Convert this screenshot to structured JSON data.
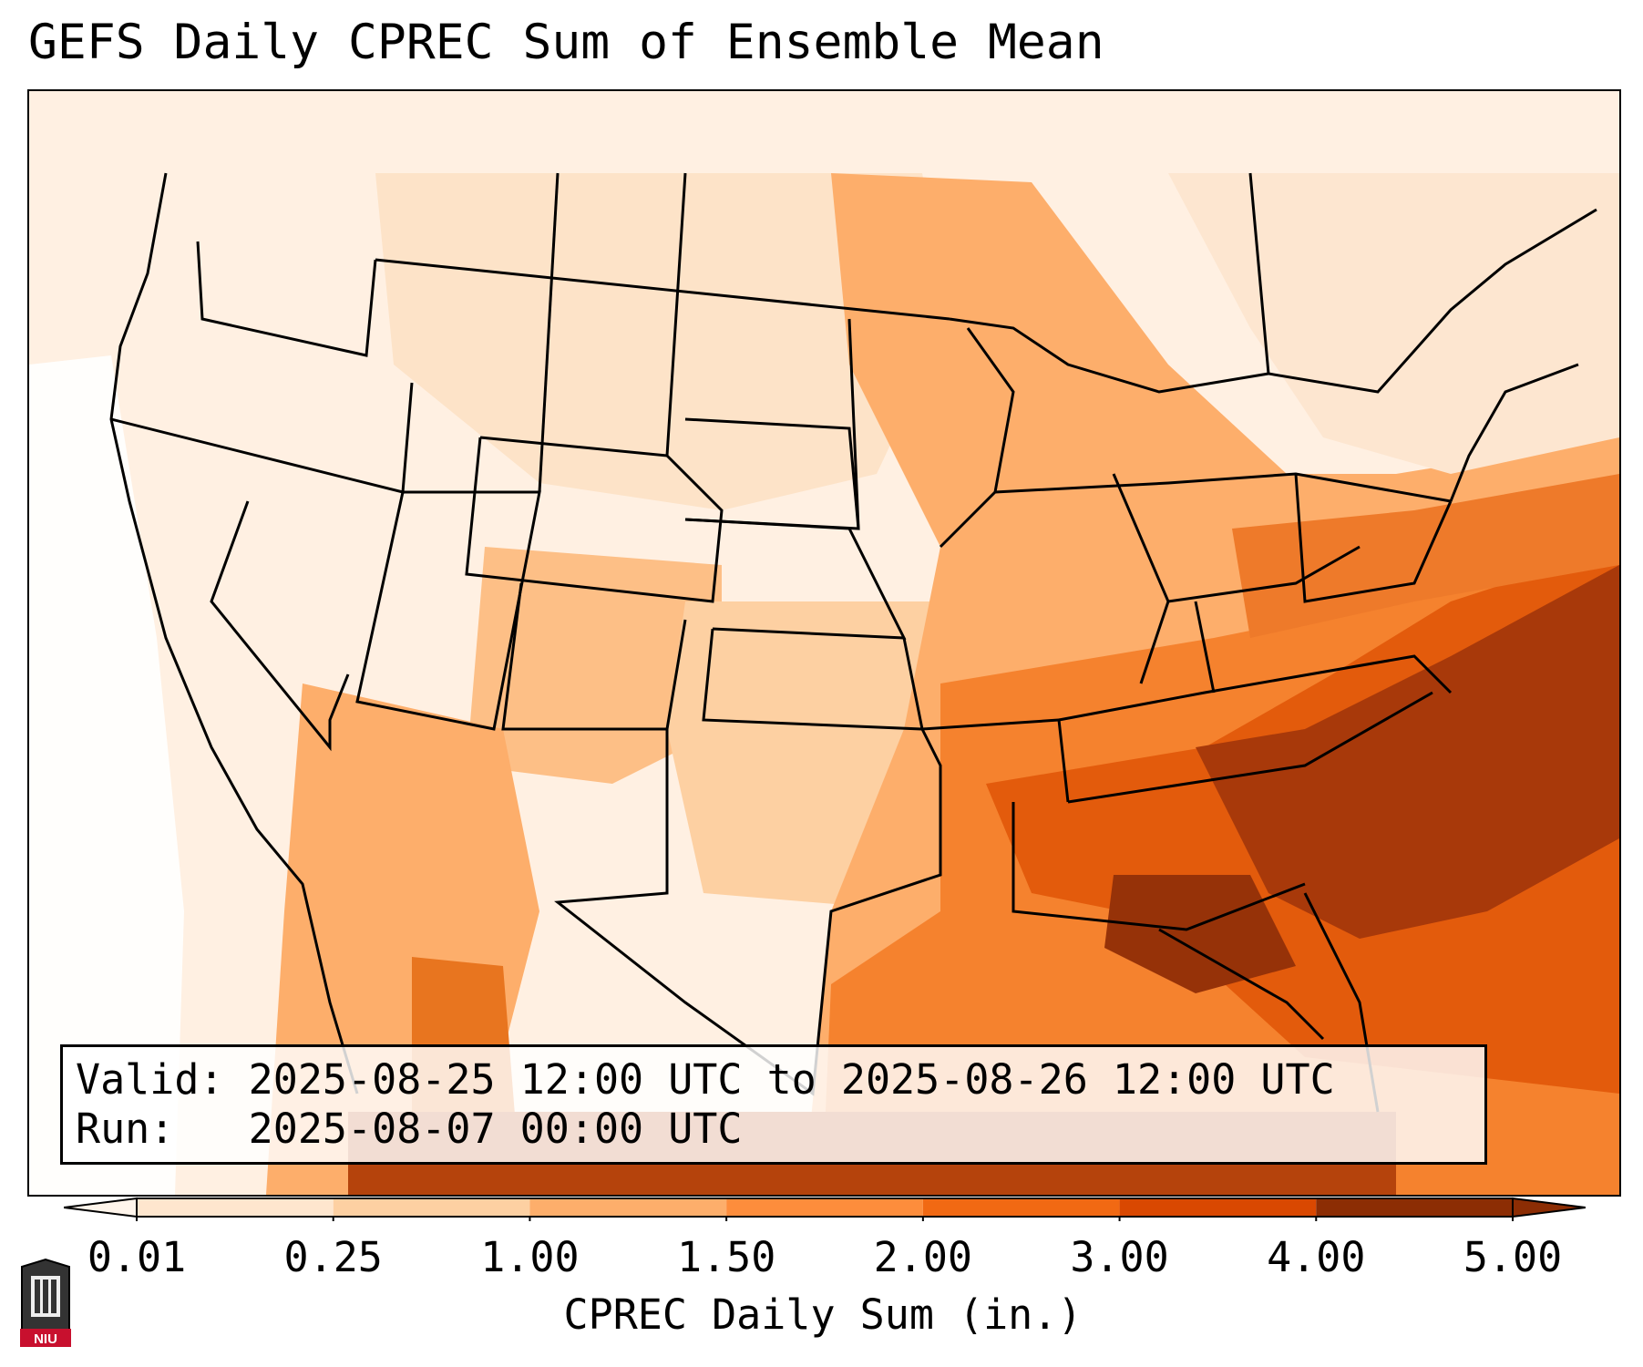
{
  "title": "GEFS Daily CPREC Sum of Ensemble Mean",
  "info": {
    "valid_line": "Valid: 2025-08-25 12:00 UTC to 2025-08-26 12:00 UTC",
    "run_line": "Run:   2025-08-07 00:00 UTC"
  },
  "colorbar": {
    "label": "CPREC Daily Sum (in.)",
    "ticks": [
      "0.01",
      "0.25",
      "1.00",
      "1.50",
      "2.00",
      "3.00",
      "4.00",
      "5.00"
    ],
    "colors": [
      "#fff5eb",
      "#fee6ce",
      "#fdd0a2",
      "#fdae6b",
      "#fd8d3c",
      "#f16913",
      "#d94801",
      "#8c2d04"
    ],
    "extend": "both"
  },
  "logo": {
    "text": "NIU",
    "icon": "niu-logo-icon"
  },
  "map": {
    "projection": "lambert-conformal",
    "region": "contiguous-united-states",
    "variable": "CPREC",
    "overlays": [
      "state-borders",
      "coastlines",
      "country-borders"
    ]
  }
}
